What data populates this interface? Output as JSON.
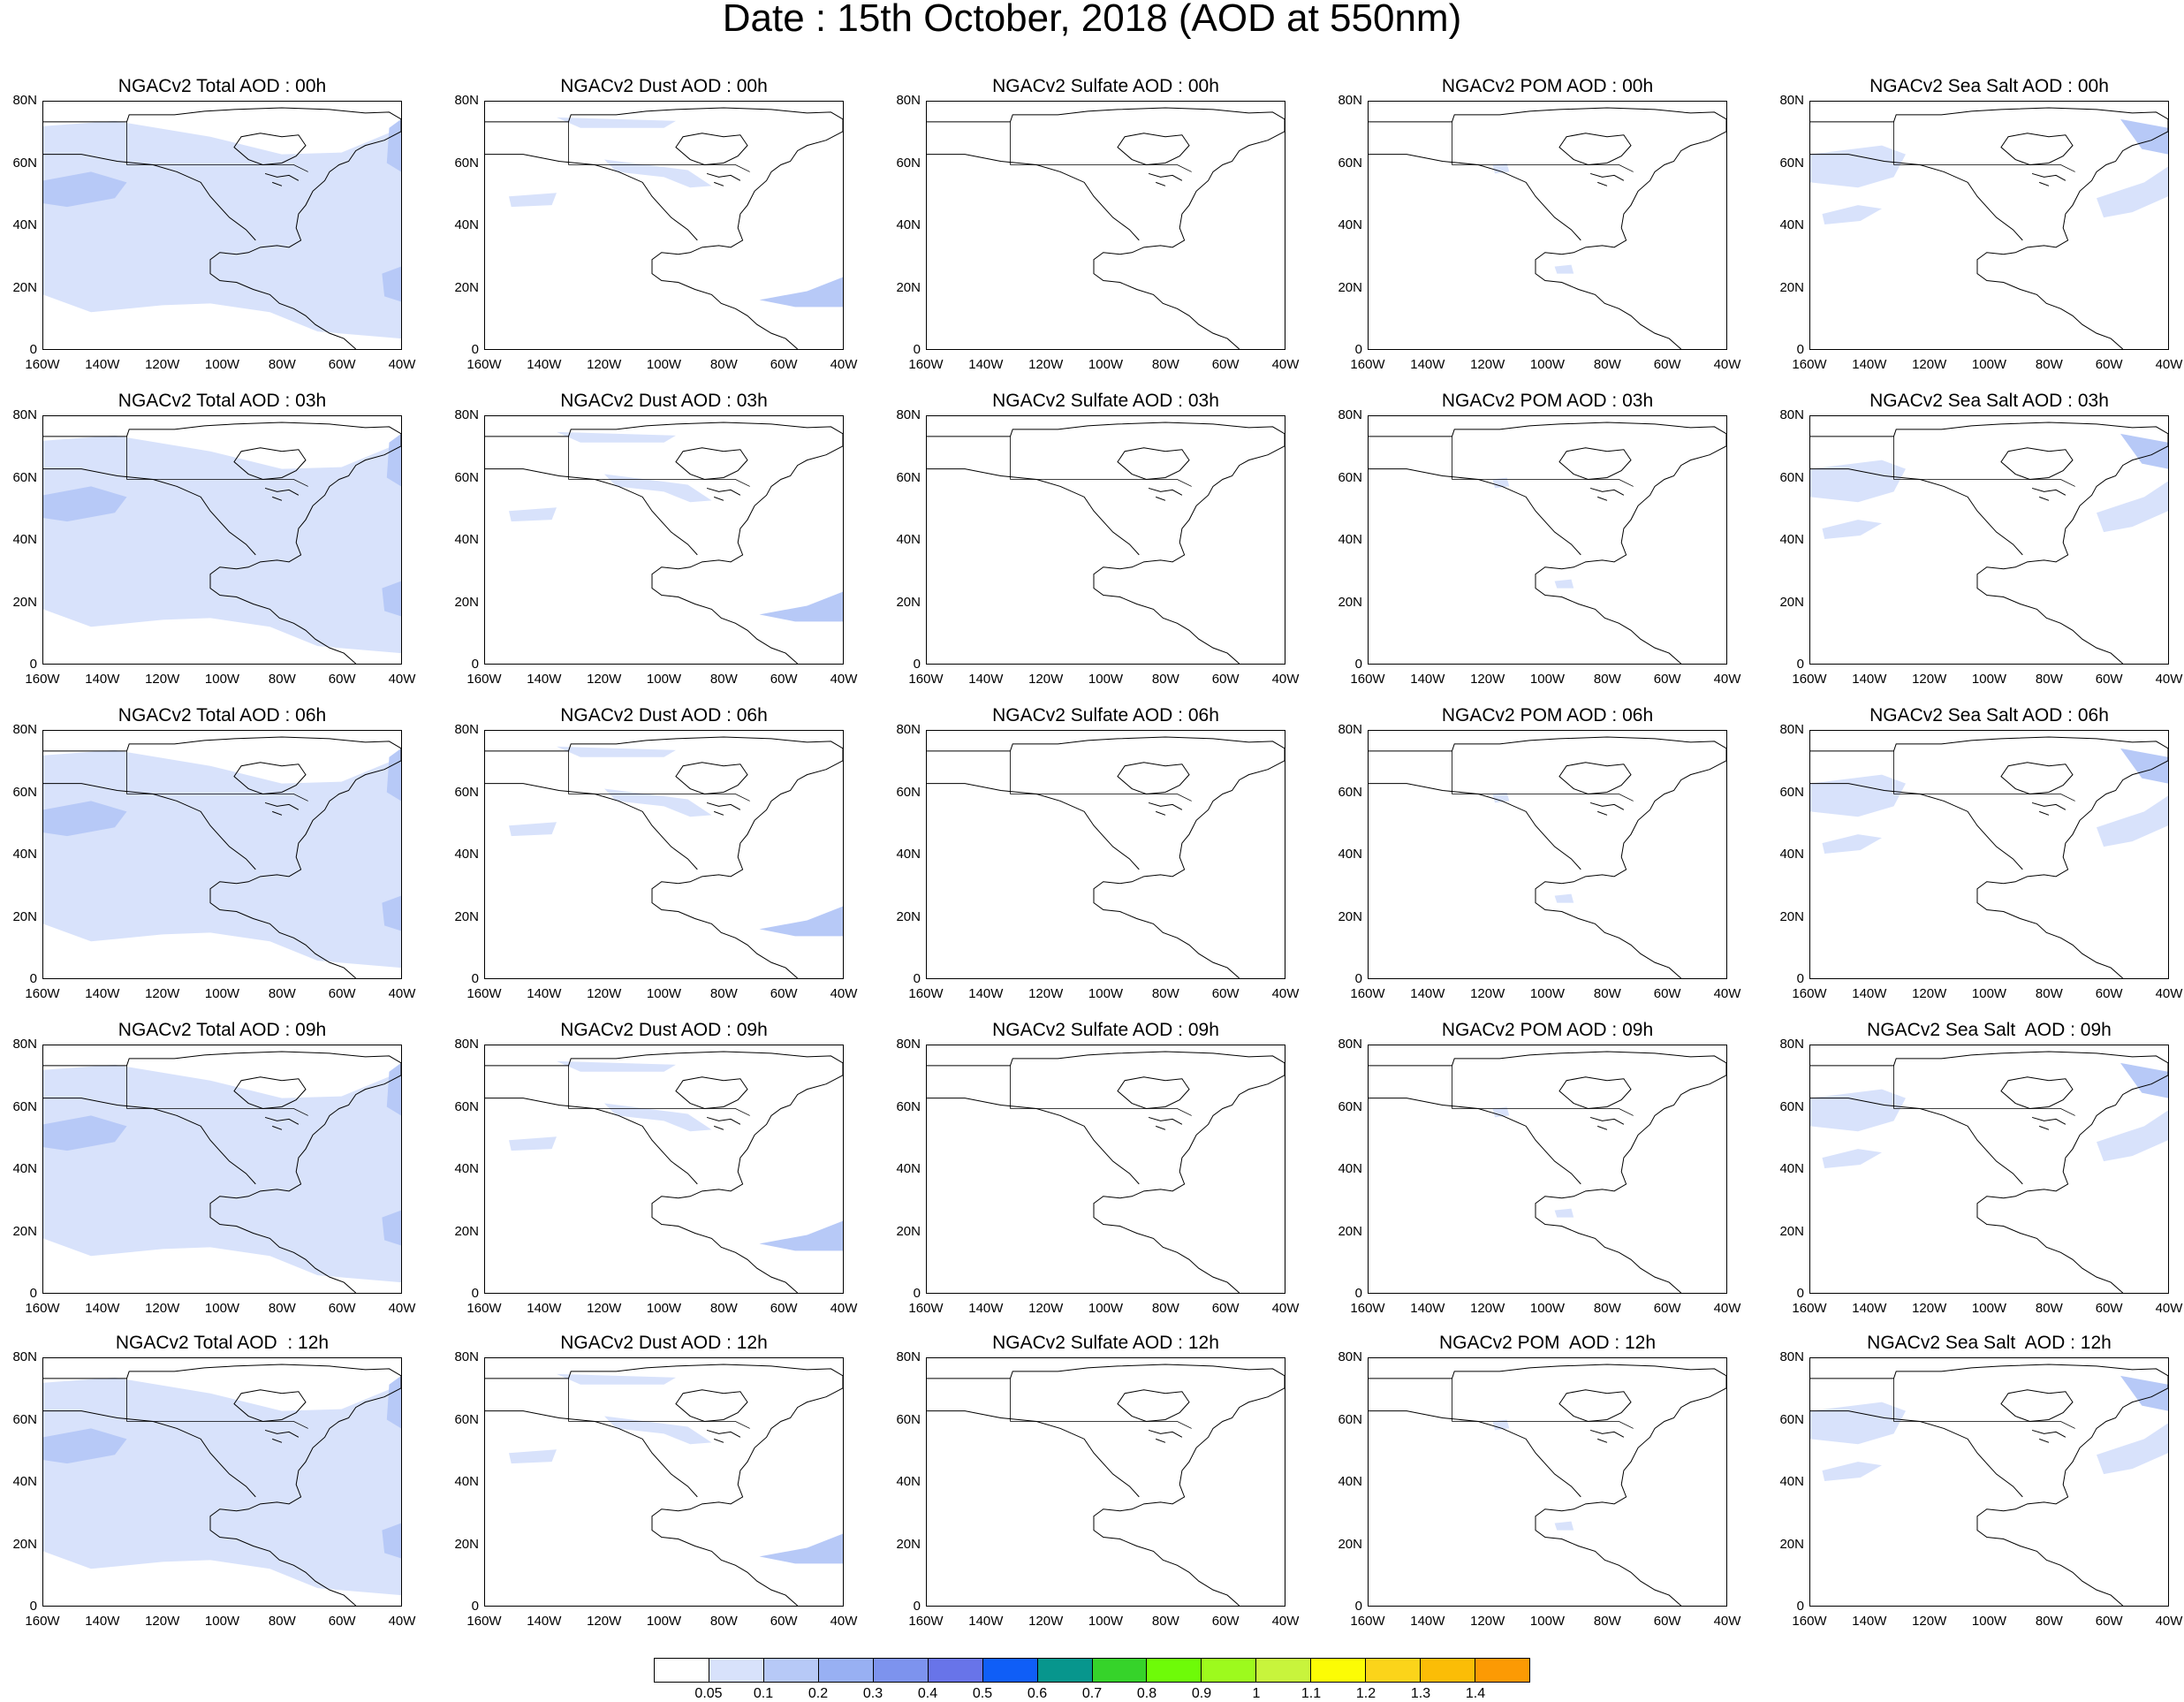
{
  "title": "Date : 15th October, 2018 (AOD at 550nm)",
  "lat_ticks": [
    "80N",
    "60N",
    "40N",
    "20N",
    "0"
  ],
  "lon_ticks": [
    "160W",
    "140W",
    "120W",
    "100W",
    "80W",
    "60W",
    "40W"
  ],
  "panels": [
    [
      "NGACv2 Total AOD : 00h",
      "NGACv2 Dust AOD : 00h",
      "NGACv2 Sulfate AOD : 00h",
      "NGACv2 POM AOD : 00h",
      "NGACv2 Sea Salt AOD : 00h"
    ],
    [
      "NGACv2 Total AOD : 03h",
      "NGACv2 Dust AOD : 03h",
      "NGACv2 Sulfate AOD : 03h",
      "NGACv2 POM AOD : 03h",
      "NGACv2 Sea Salt AOD : 03h"
    ],
    [
      "NGACv2 Total AOD : 06h",
      "NGACv2 Dust AOD : 06h",
      "NGACv2 Sulfate AOD : 06h",
      "NGACv2 POM AOD : 06h",
      "NGACv2 Sea Salt AOD : 06h"
    ],
    [
      "NGACv2 Total AOD : 09h",
      "NGACv2 Dust AOD : 09h",
      "NGACv2 Sulfate AOD : 09h",
      "NGACv2 POM AOD : 09h",
      "NGACv2 Sea Salt  AOD : 09h"
    ],
    [
      "NGACv2 Total AOD  : 12h",
      "NGACv2 Dust AOD : 12h",
      "NGACv2 Sulfate AOD : 12h",
      "NGACv2 POM  AOD : 12h",
      "NGACv2 Sea Salt  AOD : 12h"
    ]
  ],
  "colorbar": {
    "colors": [
      "#ffffff",
      "#d8e2fb",
      "#b7c9f7",
      "#98b0f3",
      "#7d93ee",
      "#6874e9",
      "#0f5ef7",
      "#07968d",
      "#36d32a",
      "#6efb08",
      "#9dfa1d",
      "#c8f43c",
      "#fcfc05",
      "#fbd41a",
      "#fbbd06",
      "#fc9a04",
      "#f8780c",
      "#f7310f"
    ],
    "labels": [
      "0.05",
      "0.1",
      "0.2",
      "0.3",
      "0.4",
      "0.5",
      "0.6",
      "0.7",
      "0.8",
      "0.9",
      "1",
      "1.1",
      "1.2",
      "1.3",
      "1.4"
    ]
  },
  "map_layers": {
    "total": {
      "light": "#d8e2fb",
      "medium": "#b7c9f7"
    },
    "dust": {
      "light": "#d8e2fb",
      "medium": "#b7c9f7"
    },
    "sulfate": {
      "light": "#d8e2fb"
    },
    "pom": {
      "light": "#d8e2fb"
    },
    "seasalt": {
      "light": "#d8e2fb",
      "medium": "#b7c9f7"
    }
  }
}
